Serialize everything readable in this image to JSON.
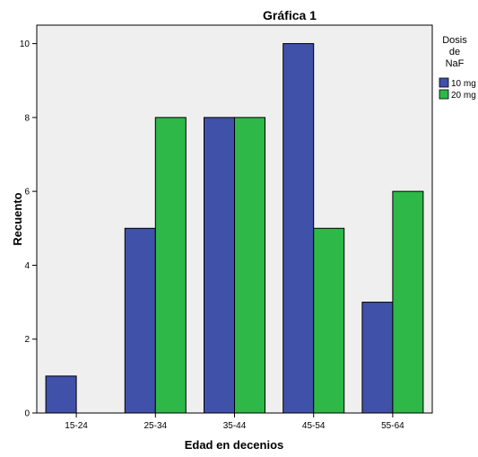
{
  "chart_data": {
    "type": "bar",
    "title": "Gráfica 1",
    "xlabel": "Edad en decenios",
    "ylabel": "Recuento",
    "categories": [
      "15-24",
      "25-34",
      "35-44",
      "45-54",
      "55-64"
    ],
    "series": [
      {
        "name": "10 mg",
        "color": "#3f51a8",
        "values": [
          1,
          5,
          8,
          10,
          3
        ]
      },
      {
        "name": "20 mg",
        "color": "#2db848",
        "values": [
          0,
          8,
          8,
          5,
          6
        ]
      }
    ],
    "ylim": [
      0,
      10.5
    ],
    "yticks": [
      0,
      2,
      4,
      6,
      8,
      10
    ],
    "legend": {
      "title_lines": [
        "Dosis",
        "de",
        "NaF"
      ],
      "position": "right"
    },
    "grid": false,
    "plot_background": "#efefef"
  }
}
